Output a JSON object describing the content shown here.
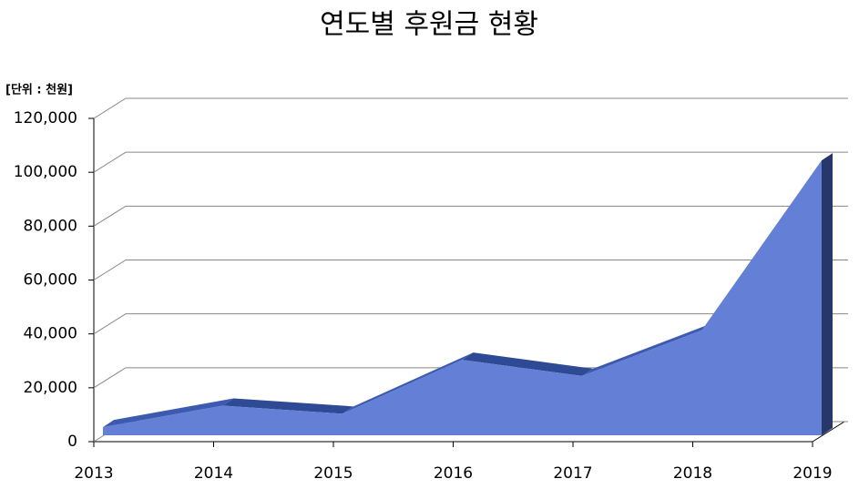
{
  "chart_data": {
    "type": "area3d",
    "title": "연도별 후원금 현황",
    "unit_label": "[단위 : 천원]",
    "categories": [
      "2013",
      "2014",
      "2015",
      "2016",
      "2017",
      "2018",
      "2019"
    ],
    "series": [
      {
        "name": "후원금",
        "color": "#6380d6",
        "values": [
          3000,
          11000,
          8000,
          28000,
          22000,
          39000,
          102000
        ]
      }
    ],
    "ylim": [
      0,
      120000
    ],
    "yticks": [
      0,
      {
        "value": 20000,
        "label": "20,000"
      },
      {
        "value": 40000,
        "label": "40,000"
      },
      {
        "value": 60000,
        "label": "60,000"
      },
      {
        "value": 80000,
        "label": "80,000"
      },
      {
        "value": 100000,
        "label": "100,000"
      },
      {
        "value": 120000,
        "label": "120,000"
      }
    ],
    "grid": true
  }
}
